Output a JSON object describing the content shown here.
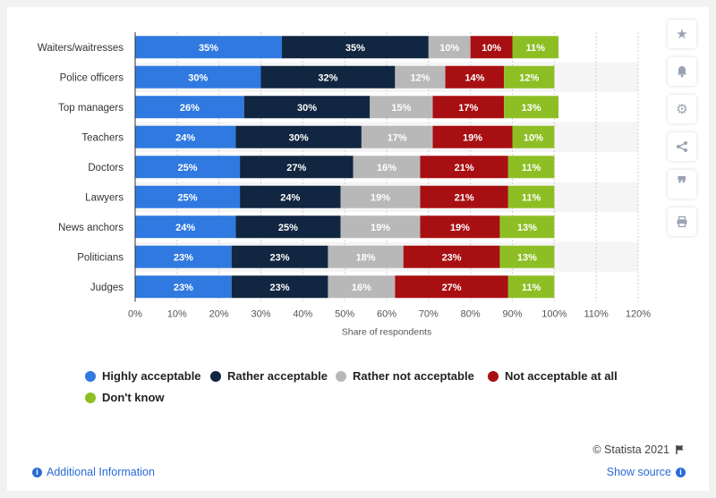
{
  "chart_data": {
    "type": "bar",
    "orientation": "horizontal",
    "stacked": true,
    "categories": [
      "Waiters/waitresses",
      "Police officers",
      "Top managers",
      "Teachers",
      "Doctors",
      "Lawyers",
      "News anchors",
      "Politicians",
      "Judges"
    ],
    "series": [
      {
        "name": "Highly acceptable",
        "color": "#2f79e0",
        "values": [
          35,
          30,
          26,
          24,
          25,
          25,
          24,
          23,
          23
        ]
      },
      {
        "name": "Rather acceptable",
        "color": "#112640",
        "values": [
          35,
          32,
          30,
          30,
          27,
          24,
          25,
          23,
          23
        ]
      },
      {
        "name": "Rather not acceptable",
        "color": "#b8b8b8",
        "values": [
          10,
          12,
          15,
          17,
          16,
          19,
          19,
          18,
          16
        ]
      },
      {
        "name": "Not acceptable at all",
        "color": "#a80f12",
        "values": [
          10,
          14,
          17,
          19,
          21,
          21,
          19,
          23,
          27
        ]
      },
      {
        "name": "Don't know",
        "color": "#8dbf25",
        "values": [
          11,
          12,
          13,
          10,
          11,
          11,
          13,
          13,
          11
        ]
      }
    ],
    "xlabel": "Share of respondents",
    "ylabel": "",
    "xlim": [
      0,
      120
    ],
    "xticks": [
      "0%",
      "10%",
      "20%",
      "30%",
      "40%",
      "50%",
      "60%",
      "70%",
      "80%",
      "90%",
      "100%",
      "110%",
      "120%"
    ],
    "grid": true,
    "legend_position": "bottom"
  },
  "footer": {
    "copyright": "© Statista 2021",
    "additional_info": "Additional Information",
    "show_source": "Show source"
  },
  "icons": {
    "star": "star-icon",
    "bell": "bell-icon",
    "gear": "gear-icon",
    "share": "share-icon",
    "quote": "quote-icon",
    "print": "print-icon",
    "flag": "flag-icon",
    "info": "info-icon"
  }
}
